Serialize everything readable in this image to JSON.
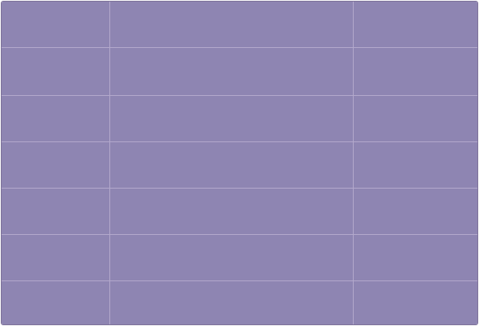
{
  "grid": {
    "fill_color": "#8e85b2",
    "line_color": "#b3a9cc",
    "rows": 7,
    "columns": 3
  }
}
